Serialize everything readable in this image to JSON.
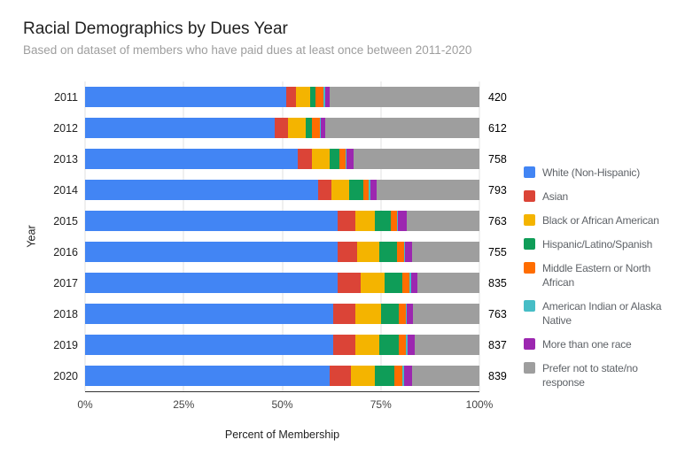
{
  "header": {
    "title": "Racial Demographics by Dues Year",
    "subtitle": "Based on dataset of members who have paid dues at least once between 2011-2020"
  },
  "axes": {
    "y_title": "Year",
    "x_title": "Percent of Membership",
    "x_ticks": [
      "0%",
      "25%",
      "50%",
      "75%",
      "100%"
    ]
  },
  "chart_data": {
    "type": "bar",
    "orientation": "horizontal",
    "stacked": "100%",
    "title": "Racial Demographics by Dues Year",
    "subtitle": "Based on dataset of members who have paid dues at least once between 2011-2020",
    "xlabel": "Percent of Membership",
    "ylabel": "Year",
    "xlim": [
      0,
      100
    ],
    "grid": true,
    "legend_position": "right",
    "categories": [
      "2011",
      "2012",
      "2013",
      "2014",
      "2015",
      "2016",
      "2017",
      "2018",
      "2019",
      "2020"
    ],
    "totals": [
      420,
      612,
      758,
      793,
      763,
      755,
      835,
      763,
      837,
      839
    ],
    "series": [
      {
        "name": "White (Non-Hispanic)",
        "color": "#4285F4",
        "values": [
          51,
          48,
          54,
          59,
          64,
          64,
          64,
          63,
          63,
          62
        ]
      },
      {
        "name": "Asian",
        "color": "#DB4437",
        "values": [
          2.5,
          3.5,
          3.5,
          3.5,
          4.5,
          5,
          6,
          5.5,
          5.5,
          5.5
        ]
      },
      {
        "name": "Black or African American",
        "color": "#F4B400",
        "values": [
          3.5,
          4.5,
          4.5,
          4.5,
          5,
          5.5,
          6,
          6.5,
          6,
          6
        ]
      },
      {
        "name": "Hispanic/Latino/Spanish",
        "color": "#0F9D58",
        "values": [
          1.5,
          1.5,
          2.5,
          3.5,
          4,
          4.5,
          4.5,
          4.5,
          5,
          5
        ]
      },
      {
        "name": "Middle Eastern or North African",
        "color": "#FF6D00",
        "values": [
          2,
          2,
          1.5,
          1.5,
          1.5,
          1.8,
          1.8,
          1.8,
          1.8,
          2
        ]
      },
      {
        "name": "American Indian or Alaska Native",
        "color": "#46BDC6",
        "values": [
          0.3,
          0.3,
          0.3,
          0.3,
          0.3,
          0.3,
          0.3,
          0.3,
          0.4,
          0.5
        ]
      },
      {
        "name": "More than one race",
        "color": "#9C27B0",
        "values": [
          1.2,
          1.2,
          1.7,
          1.7,
          2.2,
          1.9,
          1.6,
          1.6,
          2,
          2
        ]
      },
      {
        "name": "Prefer not to state/no response",
        "color": "#9E9E9E",
        "values": [
          38,
          39,
          32,
          26,
          18.5,
          17,
          15.8,
          16.8,
          16.3,
          17
        ]
      }
    ]
  }
}
